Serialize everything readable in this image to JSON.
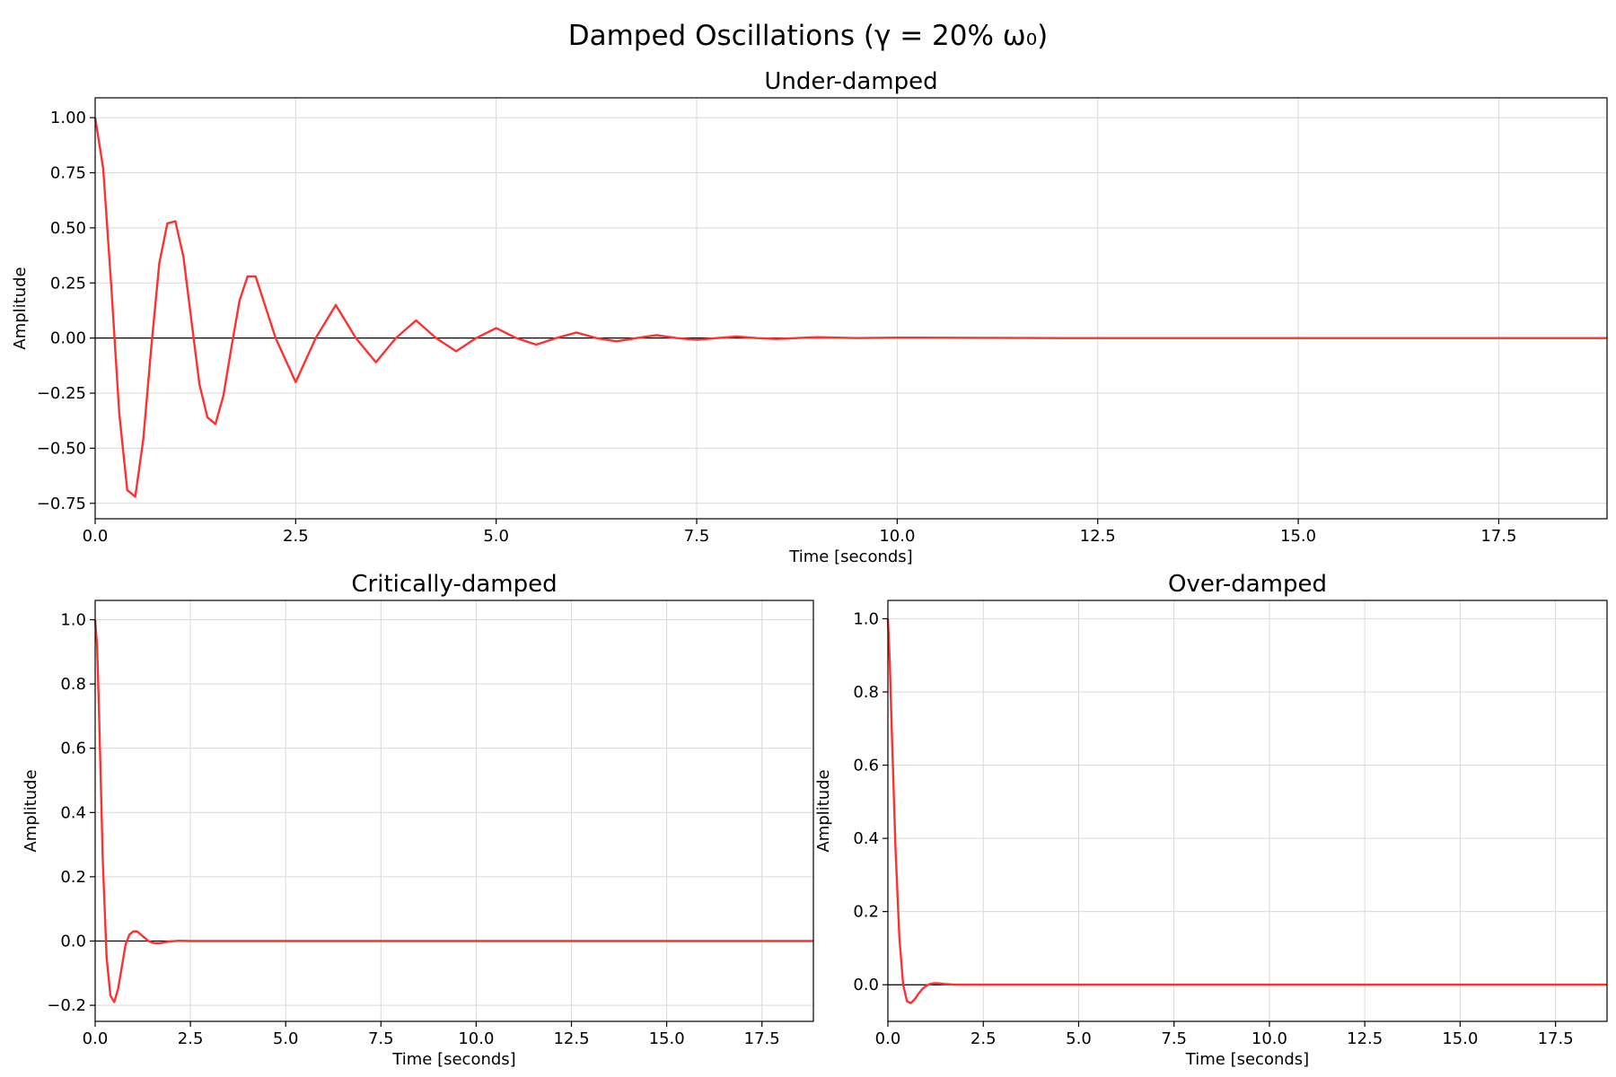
{
  "figure_title": "Damped Oscillations (γ = 20% ω₀)",
  "colors": {
    "curve": "#ff3030",
    "zero_line": "#000000",
    "grid": "#d9d9d9"
  },
  "chart_data": [
    {
      "type": "line",
      "title": "Under-damped",
      "xlabel": "Time [seconds]",
      "ylabel": "Amplitude",
      "xlim": [
        0,
        18.85
      ],
      "ylim": [
        -0.82,
        1.09
      ],
      "xticks": [
        0,
        2.5,
        5,
        7.5,
        10,
        12.5,
        15,
        17.5
      ],
      "xtick_labels": [
        "0.0",
        "2.5",
        "5.0",
        "7.5",
        "10.0",
        "12.5",
        "15.0",
        "17.5"
      ],
      "yticks": [
        1,
        0.75,
        0.5,
        0.25,
        0,
        -0.25,
        -0.5,
        -0.75
      ],
      "ytick_labels": [
        "1.00",
        "0.75",
        "0.50",
        "0.25",
        "0.00",
        "−0.25",
        "−0.50",
        "−0.75"
      ],
      "grid": true,
      "series": [
        {
          "color": "#ff3030",
          "x": [
            0,
            0.1,
            0.2,
            0.3,
            0.4,
            0.5,
            0.6,
            0.7,
            0.8,
            0.9,
            1.0,
            1.1,
            1.2,
            1.3,
            1.4,
            1.5,
            1.6,
            1.7,
            1.8,
            1.9,
            2.0,
            2.25,
            2.5,
            2.75,
            3.0,
            3.25,
            3.5,
            3.75,
            4.0,
            4.25,
            4.5,
            4.75,
            5.0,
            5.25,
            5.5,
            5.75,
            6.0,
            6.25,
            6.5,
            6.75,
            7.0,
            7.25,
            7.5,
            7.75,
            8.0,
            8.25,
            8.5,
            8.75,
            9.0,
            9.5,
            10.0,
            11.0,
            12.0,
            14.0,
            16.0,
            18.85
          ],
          "y": [
            1.0,
            0.77,
            0.24,
            -0.34,
            -0.69,
            -0.72,
            -0.46,
            -0.04,
            0.34,
            0.52,
            0.53,
            0.37,
            0.08,
            -0.21,
            -0.36,
            -0.39,
            -0.26,
            -0.04,
            0.17,
            0.28,
            0.28,
            0.0,
            -0.2,
            0.0,
            0.15,
            0.0,
            -0.11,
            0.0,
            0.08,
            0.0,
            -0.06,
            0.0,
            0.045,
            0.0,
            -0.03,
            0.0,
            0.025,
            0.0,
            -0.015,
            0.0,
            0.013,
            0.0,
            -0.008,
            0.0,
            0.007,
            0.0,
            -0.004,
            0.0,
            0.004,
            0.0,
            0.002,
            0.001,
            0.0,
            0.0,
            0.0,
            0.0
          ]
        }
      ]
    },
    {
      "type": "line",
      "title": "Critically-damped",
      "xlabel": "Time [seconds]",
      "ylabel": "Amplitude",
      "xlim": [
        0,
        18.85
      ],
      "ylim": [
        -0.25,
        1.06
      ],
      "xticks": [
        0,
        2.5,
        5,
        7.5,
        10,
        12.5,
        15,
        17.5
      ],
      "xtick_labels": [
        "0.0",
        "2.5",
        "5.0",
        "7.5",
        "10.0",
        "12.5",
        "15.0",
        "17.5"
      ],
      "yticks": [
        1,
        0.8,
        0.6,
        0.4,
        0.2,
        0,
        -0.2
      ],
      "ytick_labels": [
        "1.0",
        "0.8",
        "0.6",
        "0.4",
        "0.2",
        "0.0",
        "−0.2"
      ],
      "grid": true,
      "series": [
        {
          "color": "#ff3030",
          "x": [
            0,
            0.05,
            0.1,
            0.2,
            0.3,
            0.4,
            0.5,
            0.6,
            0.7,
            0.8,
            0.9,
            1.0,
            1.1,
            1.2,
            1.3,
            1.4,
            1.5,
            1.6,
            1.7,
            1.8,
            2.0,
            2.2,
            2.5,
            3.0,
            5.0,
            10.0,
            18.85
          ],
          "y": [
            1.0,
            0.92,
            0.72,
            0.25,
            -0.05,
            -0.17,
            -0.19,
            -0.15,
            -0.08,
            -0.01,
            0.02,
            0.03,
            0.03,
            0.02,
            0.01,
            0.0,
            -0.005,
            -0.007,
            -0.007,
            -0.004,
            -0.001,
            0.001,
            0.0,
            0.0,
            0.0,
            0.0,
            0.0
          ]
        }
      ]
    },
    {
      "type": "line",
      "title": "Over-damped",
      "xlabel": "Time [seconds]",
      "ylabel": "Amplitude",
      "xlim": [
        0,
        18.85
      ],
      "ylim": [
        -0.1,
        1.05
      ],
      "xticks": [
        0,
        2.5,
        5,
        7.5,
        10,
        12.5,
        15,
        17.5
      ],
      "xtick_labels": [
        "0.0",
        "2.5",
        "5.0",
        "7.5",
        "10.0",
        "12.5",
        "15.0",
        "17.5"
      ],
      "yticks": [
        1,
        0.8,
        0.6,
        0.4,
        0.2,
        0
      ],
      "ytick_labels": [
        "1.0",
        "0.8",
        "0.6",
        "0.4",
        "0.2",
        "0.0"
      ],
      "grid": true,
      "series": [
        {
          "color": "#ff3030",
          "x": [
            0,
            0.05,
            0.1,
            0.2,
            0.3,
            0.4,
            0.5,
            0.6,
            0.7,
            0.8,
            0.9,
            1.0,
            1.1,
            1.2,
            1.3,
            1.5,
            1.8,
            2.2,
            3.0,
            5.0,
            10.0,
            18.85
          ],
          "y": [
            1.0,
            0.88,
            0.7,
            0.37,
            0.13,
            0.0,
            -0.045,
            -0.05,
            -0.04,
            -0.025,
            -0.012,
            -0.003,
            0.002,
            0.004,
            0.004,
            0.002,
            0.0,
            0.0,
            0.0,
            0.0,
            0.0,
            0.0
          ]
        }
      ]
    }
  ]
}
